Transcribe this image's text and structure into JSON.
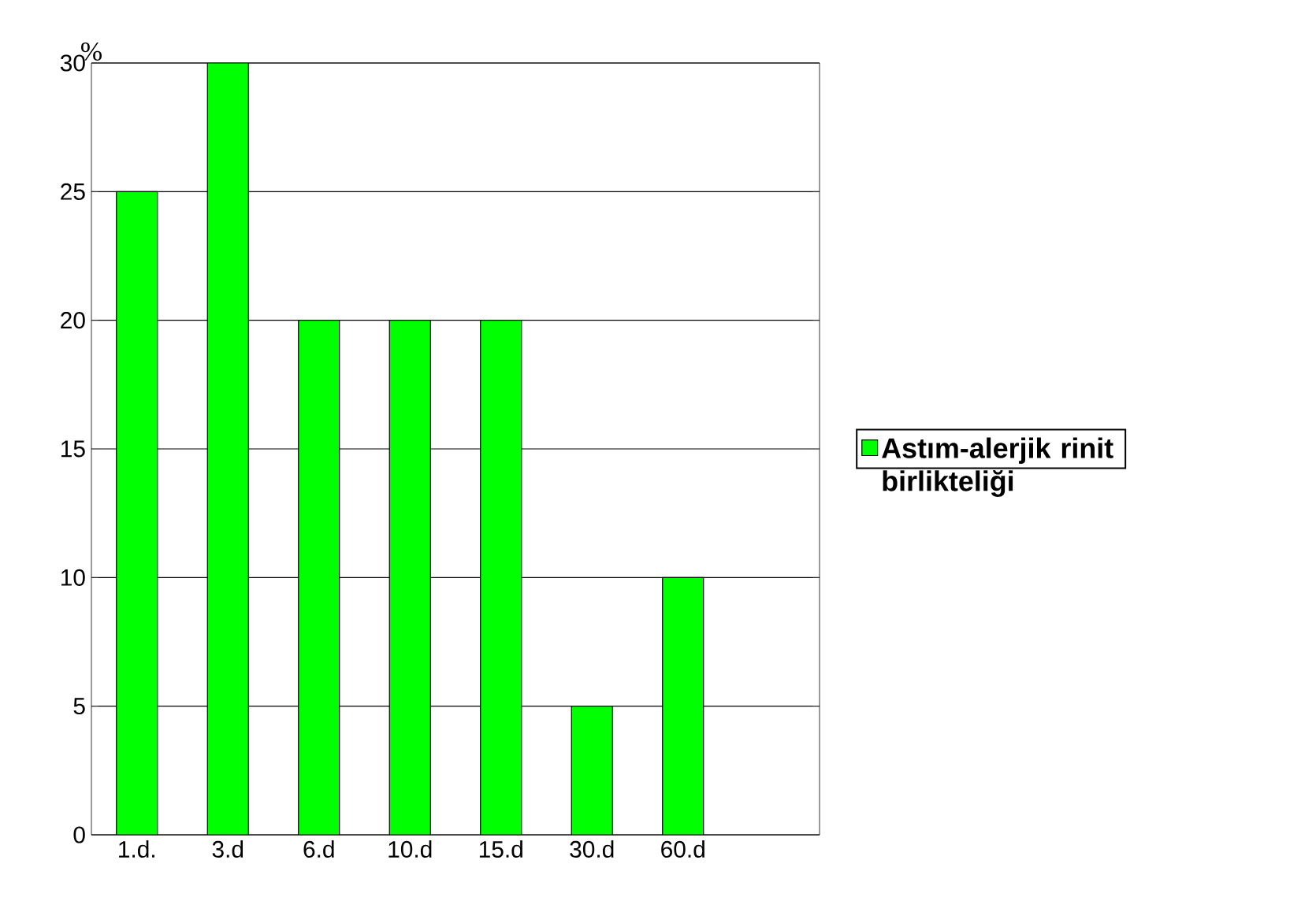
{
  "chart_data": {
    "type": "bar",
    "ylabel": "%",
    "categories": [
      "1.d.",
      "3.d",
      "6.d",
      "10.d",
      "15.d",
      "30.d",
      "60.d",
      null
    ],
    "series": [
      {
        "name": "Astım-alerjik rinit birlikteliği",
        "color": "#00ff00",
        "values": [
          25,
          30,
          20,
          20,
          20,
          5,
          10,
          null
        ]
      }
    ],
    "ylim": [
      0,
      30
    ],
    "yticks": [
      0,
      5,
      10,
      15,
      20,
      25,
      30
    ],
    "grid": "y",
    "legend": "right"
  }
}
